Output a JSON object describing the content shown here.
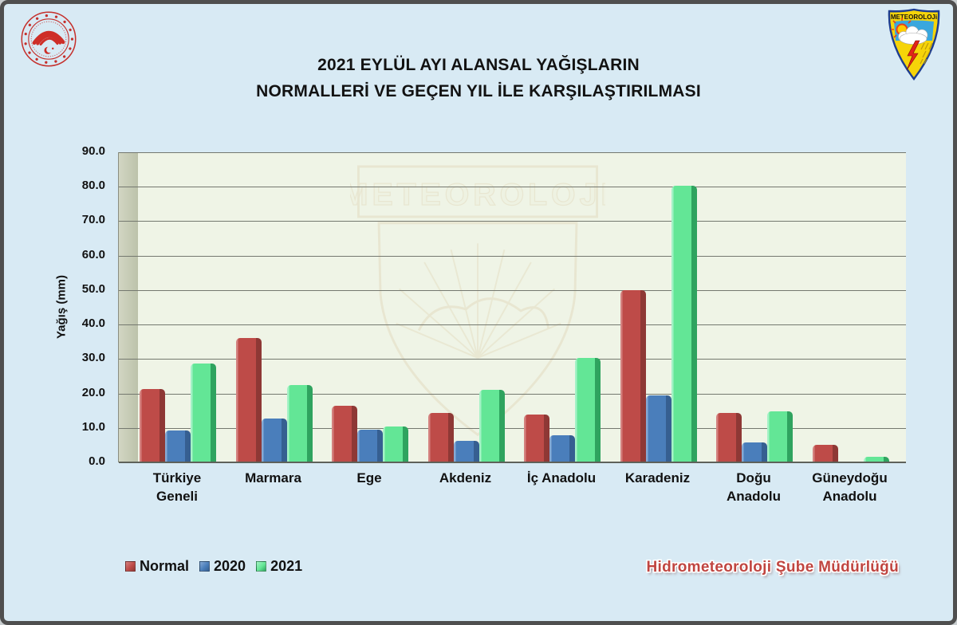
{
  "window": {
    "background": "#D8EAF4",
    "frame_color": "#4F4F4F"
  },
  "title": {
    "line1": "2021 EYLÜL AYI ALANSAL YAĞIŞLARIN",
    "line2": "NORMALLERİ VE GEÇEN YIL İLE KARŞILAŞTIRILMASI"
  },
  "logos": {
    "left_seal": "tarim-ve-orman-bakanligi-seal",
    "right_shield_label": "METEOROLOJi"
  },
  "watermark": {
    "label": "METEOROLOJI"
  },
  "footer": {
    "credit": "Hidrometeoroloji Şube Müdürlüğü",
    "credit_color": "#C04540"
  },
  "chart_data": {
    "type": "bar",
    "title": "2021 EYLÜL AYI ALANSAL YAĞIŞLARIN NORMALLERİ VE GEÇEN YIL İLE KARŞILAŞTIRILMASI",
    "xlabel": "",
    "ylabel": "Yağış (mm)",
    "ylim": [
      0,
      90
    ],
    "ytick_step": 10,
    "ytick_decimals": 1,
    "grid": true,
    "legend_position": "bottom-left",
    "plot_background": "#EFF4E6",
    "wall_color": "#C7CDB6",
    "gridline_color": "#74786F",
    "categories": [
      "Türkiye\nGeneli",
      "Marmara",
      "Ege",
      "Akdeniz",
      "İç Anadolu",
      "Karadeniz",
      "Doğu\nAnadolu",
      "Güneydoğu\nAnadolu"
    ],
    "series": [
      {
        "name": "Normal",
        "color": "#BE4B48",
        "color_dark": "#8E3835",
        "color_light": "#D4827F",
        "values": [
          21.3,
          36.0,
          16.4,
          14.4,
          13.8,
          50.0,
          14.3,
          5.2
        ]
      },
      {
        "name": "2020",
        "color": "#4A7EBB",
        "color_dark": "#365F91",
        "color_light": "#85A9D4",
        "values": [
          9.3,
          12.8,
          9.4,
          6.3,
          7.9,
          19.5,
          5.8,
          0.0
        ]
      },
      {
        "name": "2021",
        "color": "#63E696",
        "color_dark": "#2FA35F",
        "color_light": "#A4F2C6",
        "values": [
          28.8,
          22.5,
          10.3,
          21.1,
          30.3,
          80.4,
          14.7,
          1.6
        ]
      }
    ]
  }
}
